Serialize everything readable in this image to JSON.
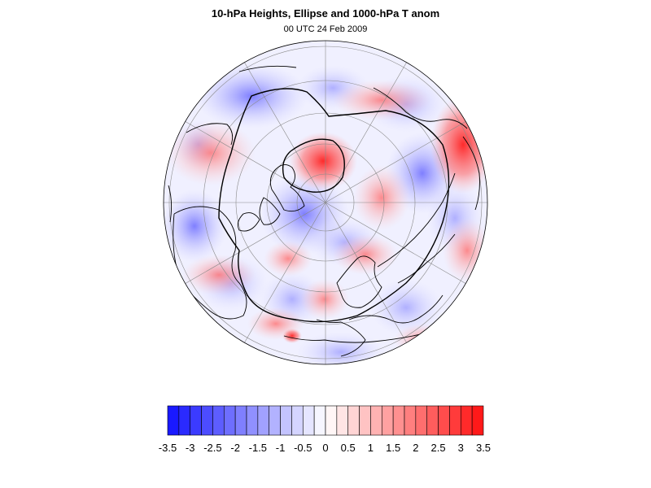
{
  "header": {
    "title": "10-hPa Heights, Ellipse and 1000-hPa T anom",
    "subtitle": "00 UTC 24 Feb 2009"
  },
  "colorbar": {
    "min": -3.5,
    "max": 3.5,
    "step": 0.25,
    "low_color": "#1010ff",
    "mid_color": "#ffffff",
    "high_color": "#ff1010",
    "labels": [
      "-3.5",
      "-3",
      "-2.5",
      "-2",
      "-1.5",
      "-1",
      "-0.5",
      "0",
      "0.5",
      "1",
      "1.5",
      "2",
      "2.5",
      "3",
      "3.5"
    ]
  },
  "map": {
    "projection": "polar-stereographic-north",
    "boundary": "circle",
    "background_color": "#f2f2ff",
    "graticule_color": "#888888",
    "contour_color": "#000000"
  }
}
